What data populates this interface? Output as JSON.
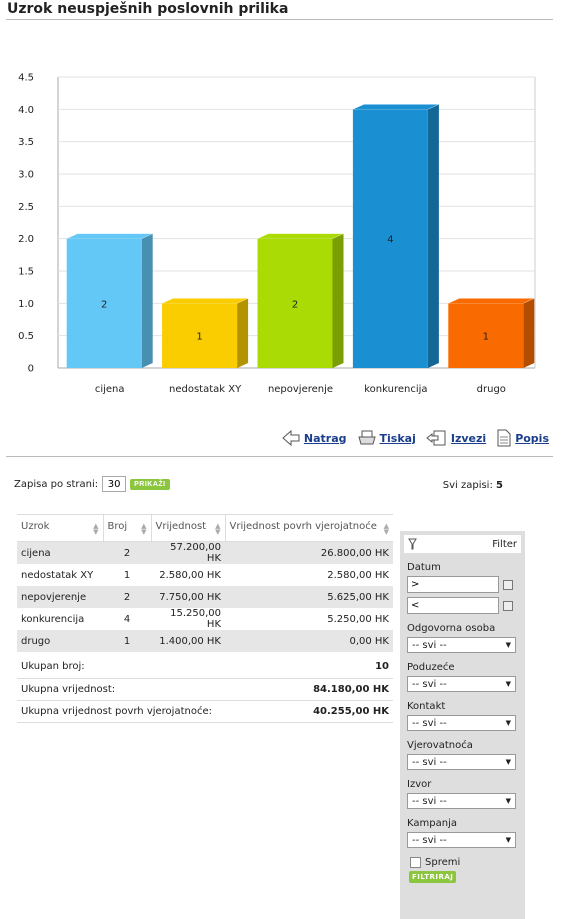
{
  "page": {
    "title": "Uzrok neuspješnih poslovnih prilika"
  },
  "chart_data": {
    "type": "bar",
    "categories": [
      "cijena",
      "nedostatak XY",
      "nepovjerenje",
      "konkurencija",
      "drugo"
    ],
    "values": [
      2,
      1,
      2,
      4,
      1
    ],
    "data_labels": [
      "2",
      "1",
      "2",
      "4",
      "1"
    ],
    "colors": [
      "#64c8f7",
      "#f9cd00",
      "#aadb05",
      "#1a8fd1",
      "#f96b00"
    ],
    "ylim": [
      0,
      4.5
    ],
    "yticks": [
      "0",
      "0.5",
      "1.0",
      "1.5",
      "2.0",
      "2.5",
      "3.0",
      "3.5",
      "4.0",
      "4.5"
    ],
    "grid": true,
    "style": "3d"
  },
  "actions": {
    "back": "Natrag",
    "print": "Tiskaj",
    "export": "Izvezi",
    "list": "Popis"
  },
  "pager": {
    "label": "Zapisa po strani:",
    "value": "30",
    "show_button": "PRIKAŽI",
    "total_label": "Svi zapisi:",
    "total_value": "5"
  },
  "table": {
    "headers": [
      "Uzrok",
      "Broj",
      "Vrijednost",
      "Vrijednost povrh vjerojatnoće"
    ],
    "rows": [
      [
        "cijena",
        "2",
        "57.200,00 HK",
        "26.800,00 HK"
      ],
      [
        "nedostatak XY",
        "1",
        "2.580,00 HK",
        "2.580,00 HK"
      ],
      [
        "nepovjerenje",
        "2",
        "7.750,00 HK",
        "5.625,00 HK"
      ],
      [
        "konkurencija",
        "4",
        "15.250,00 HK",
        "5.250,00 HK"
      ],
      [
        "drugo",
        "1",
        "1.400,00 HK",
        "0,00 HK"
      ]
    ],
    "summary": [
      {
        "label": "Ukupan broj:",
        "value": "10"
      },
      {
        "label": "Ukupna vrijednost:",
        "value": "84.180,00 HK"
      },
      {
        "label": "Ukupna vrijednost povrh vjerojatnoće:",
        "value": "40.255,00 HK"
      }
    ]
  },
  "filter": {
    "title": "Filter",
    "date_label": "Datum",
    "date_from": ">",
    "date_to": "<",
    "fields": [
      {
        "label": "Odgovorna osoba",
        "value": "-- svi --"
      },
      {
        "label": "Poduzeće",
        "value": "-- svi --"
      },
      {
        "label": "Kontakt",
        "value": "-- svi --"
      },
      {
        "label": "Vjerovatnoća",
        "value": "-- svi --"
      },
      {
        "label": "Izvor",
        "value": "-- svi --"
      },
      {
        "label": "Kampanja",
        "value": "-- svi --"
      }
    ],
    "save_label": "Spremi",
    "filter_button": "FILTRIRAJ"
  }
}
